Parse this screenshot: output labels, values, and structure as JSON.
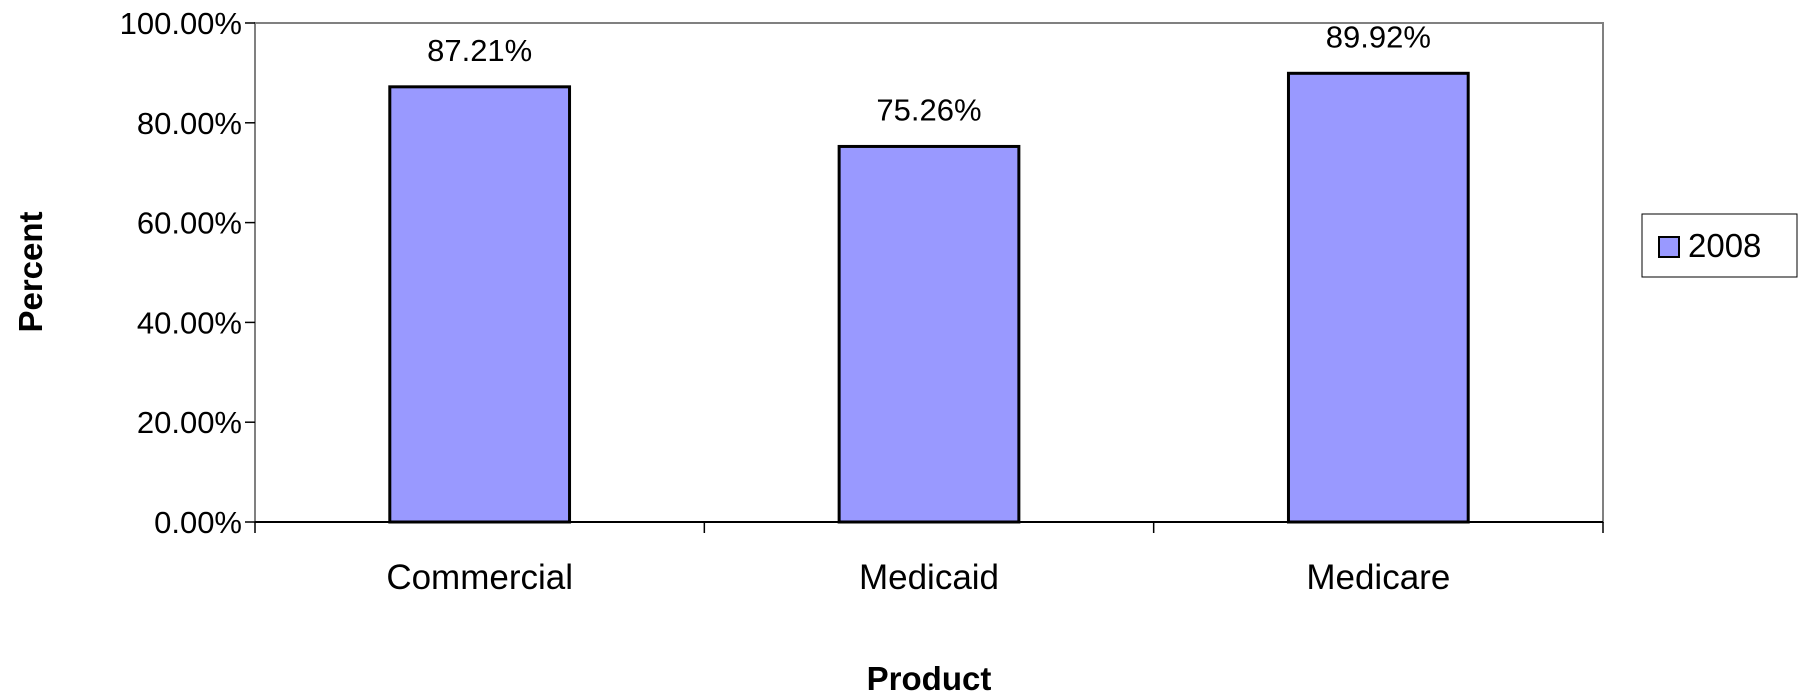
{
  "chart_data": {
    "type": "bar",
    "categories": [
      "Commercial",
      "Medicaid",
      "Medicare"
    ],
    "series": [
      {
        "name": "2008",
        "values": [
          87.21,
          75.26,
          89.92
        ],
        "color": "#9999ff"
      }
    ],
    "data_labels": [
      "87.21%",
      "75.26%",
      "89.92%"
    ],
    "xlabel": "Product",
    "ylabel": "Percent",
    "ylim": [
      0,
      100
    ],
    "yticks": [
      0,
      20,
      40,
      60,
      80,
      100
    ],
    "ytick_labels": [
      "0.00%",
      "20.00%",
      "40.00%",
      "60.00%",
      "80.00%",
      "100.00%"
    ],
    "legend": {
      "position": "right",
      "entries": [
        "2008"
      ]
    },
    "grid": false,
    "colors": {
      "bar": "#9999ff",
      "bar_outline": "#000000",
      "frame": "#808080"
    }
  }
}
